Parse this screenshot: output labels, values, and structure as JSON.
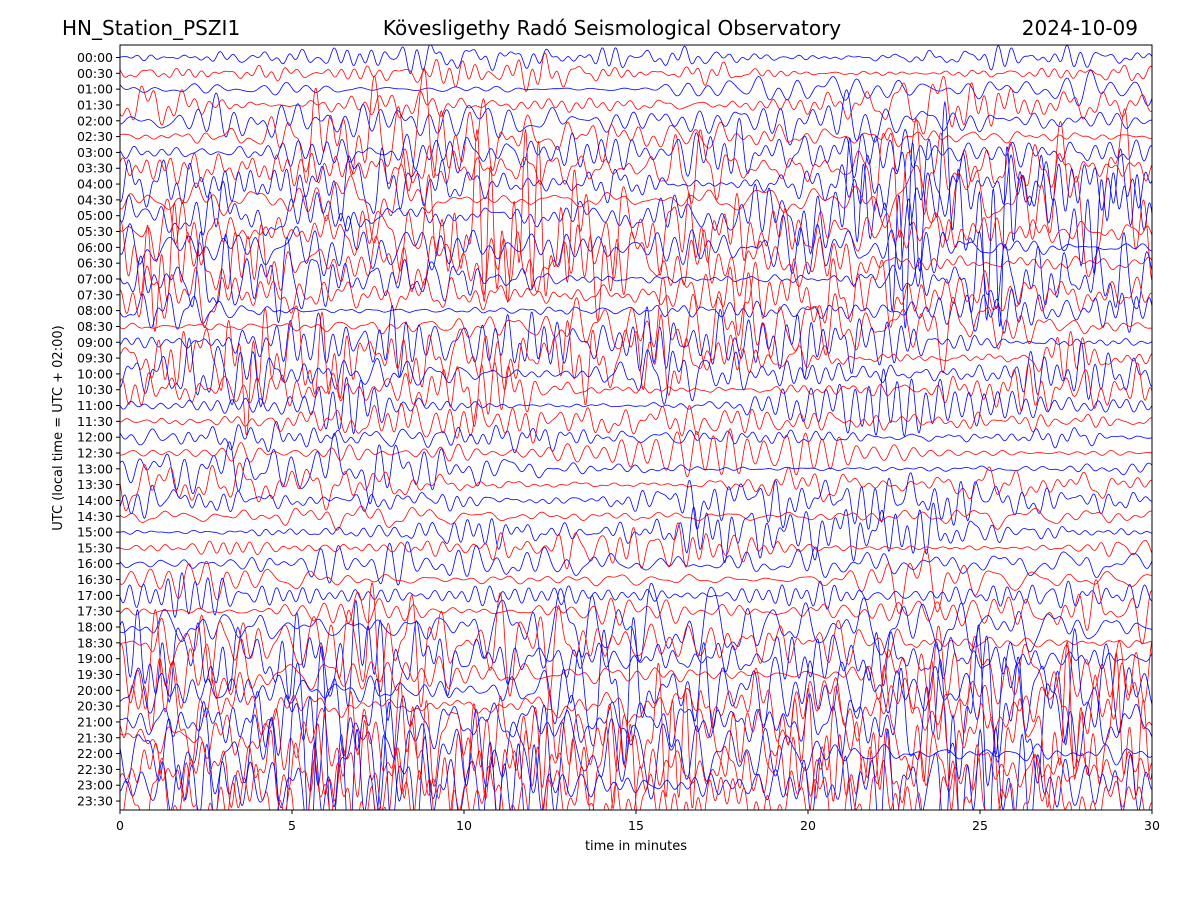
{
  "chart_data": {
    "type": "line",
    "title": "Kövesligethy Radó Seismological Observatory",
    "station": "HN_Station_PSZI1",
    "date": "2024-10-09",
    "xlabel": "time in minutes",
    "ylabel": "UTC (local time = UTC + 02:00)",
    "xlim": [
      0,
      30
    ],
    "x_ticks": [
      "0",
      "5",
      "10",
      "15",
      "20",
      "25",
      "30"
    ],
    "y_ticks": [
      "00:00",
      "00:30",
      "01:00",
      "01:30",
      "02:00",
      "02:30",
      "03:00",
      "03:30",
      "04:00",
      "04:30",
      "05:00",
      "05:30",
      "06:00",
      "06:30",
      "07:00",
      "07:30",
      "08:00",
      "08:30",
      "09:00",
      "09:30",
      "10:00",
      "10:30",
      "11:00",
      "11:30",
      "12:00",
      "12:30",
      "13:00",
      "13:30",
      "14:00",
      "14:30",
      "15:00",
      "15:30",
      "16:00",
      "16:30",
      "17:00",
      "17:30",
      "18:00",
      "18:30",
      "19:00",
      "19:30",
      "20:00",
      "20:30",
      "21:00",
      "21:30",
      "22:00",
      "22:30",
      "23:00",
      "23:30"
    ],
    "trace_colors": [
      "#0000ff",
      "#ff0000"
    ],
    "trace_amplitude": [
      0.6,
      0.7,
      0.8,
      1.0,
      1.1,
      1.3,
      1.6,
      1.9,
      2.3,
      2.5,
      2.6,
      2.5,
      2.4,
      2.2,
      1.9,
      1.6,
      1.5,
      1.6,
      1.7,
      1.6,
      1.4,
      1.2,
      1.0,
      0.9,
      0.9,
      1.0,
      1.1,
      1.1,
      1.0,
      0.9,
      0.8,
      0.8,
      0.9,
      1.0,
      1.2,
      1.4,
      1.6,
      1.9,
      2.2,
      2.5,
      2.8,
      3.0,
      3.1,
      3.2,
      3.2,
      3.1,
      3.0,
      2.9
    ],
    "grid": false,
    "legend": "none"
  }
}
